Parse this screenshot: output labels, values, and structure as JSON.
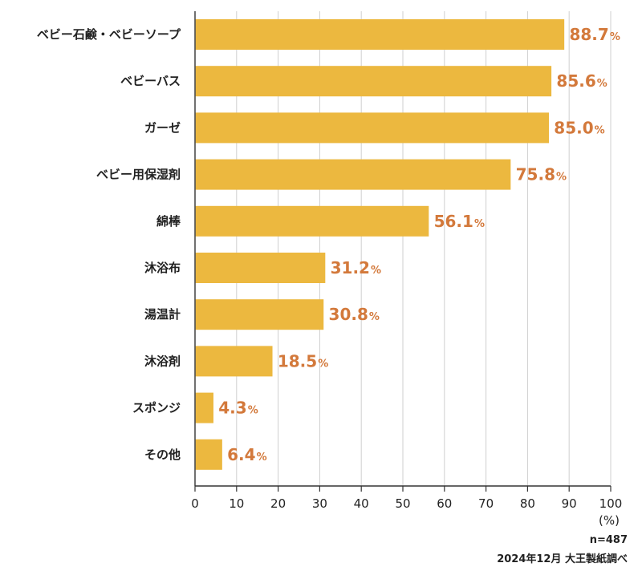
{
  "chart_data": {
    "type": "bar",
    "orientation": "horizontal",
    "categories": [
      "ベビー石鹸・ベビーソープ",
      "ベビーバス",
      "ガーゼ",
      "ベビー用保湿剤",
      "綿棒",
      "沐浴布",
      "湯温計",
      "沐浴剤",
      "スポンジ",
      "その他"
    ],
    "values": [
      88.7,
      85.6,
      85.0,
      75.8,
      56.1,
      31.2,
      30.8,
      18.5,
      4.3,
      6.4
    ],
    "value_labels": [
      "88.7",
      "85.6",
      "85.0",
      "75.8",
      "56.1",
      "31.2",
      "30.8",
      "18.5",
      "4.3",
      "6.4"
    ],
    "value_unit": "%",
    "xlim": [
      0,
      100
    ],
    "x_ticks": [
      "0",
      "10",
      "20",
      "30",
      "40",
      "50",
      "60",
      "70",
      "80",
      "90",
      "100"
    ],
    "x_unit": "(%)",
    "grid": "vertical",
    "bar_color": "#ecb83f",
    "label_color": "#d3793b"
  },
  "notes": {
    "sample_size": "n=487",
    "source": "2024年12月 大王製紙調べ"
  }
}
